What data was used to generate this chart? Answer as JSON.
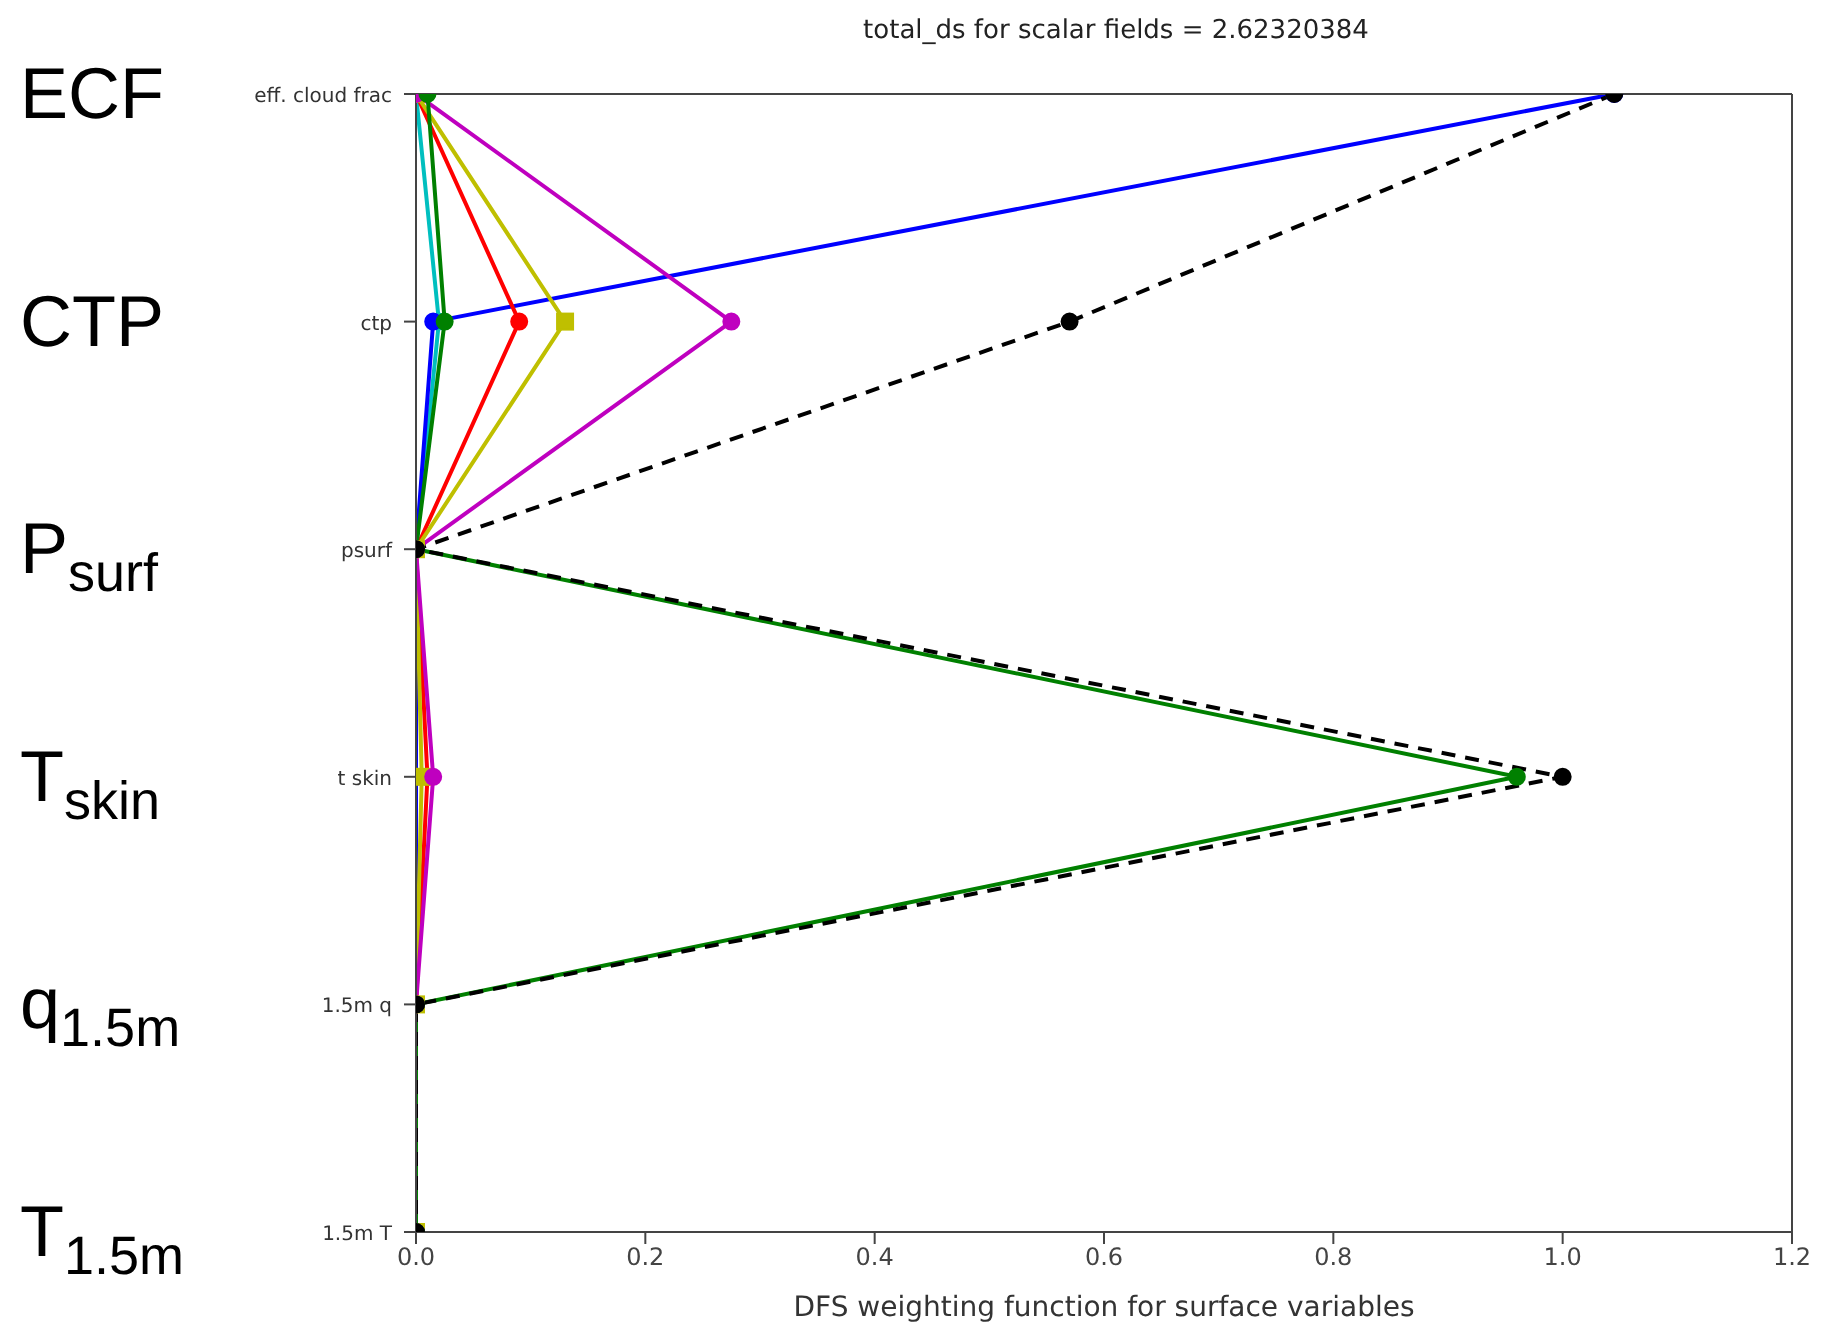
{
  "chart_data": {
    "type": "line",
    "orientation": "horizontal",
    "title": "total_ds for scalar fields = 2.62320384",
    "xlabel": "DFS weighting function for surface variables",
    "categories": [
      "eff. cloud frac",
      "ctp",
      "psurf",
      "t skin",
      "1.5m q",
      "1.5m T"
    ],
    "y2_categories": [
      "ECF",
      "CTP",
      "P$_{surf}$",
      "T$_{skin}$",
      "q$_{1.5m}$",
      "T$_{1.5m}$"
    ],
    "xlim": [
      0,
      1.2
    ],
    "xticks": [
      {
        "value": 0,
        "label": "0.0"
      },
      {
        "value": 0.2,
        "label": "0.2"
      },
      {
        "value": 0.4,
        "label": "0.4"
      },
      {
        "value": 0.6,
        "label": "0.6"
      },
      {
        "value": 0.8,
        "label": "0.8"
      },
      {
        "value": 1,
        "label": "1.0"
      },
      {
        "value": 1.2,
        "label": "1.2"
      }
    ],
    "marker": "circle",
    "grid": false,
    "legend": false,
    "series": [
      {
        "color": "#00bfbf",
        "values": [
          0,
          0.02,
          0,
          null,
          null,
          null
        ]
      },
      {
        "color": "#0000ff",
        "values": [
          1.045,
          0.015,
          0,
          0,
          0,
          0
        ]
      },
      {
        "color": "#ff0000",
        "values": [
          0,
          0.09,
          0,
          0.01,
          0,
          0
        ]
      },
      {
        "color": "#bfbf00",
        "marker": "square",
        "values": [
          0,
          0.13,
          0,
          0.005,
          0,
          0
        ]
      },
      {
        "color": "#bf00bf",
        "values": [
          0,
          0.275,
          0,
          0.015,
          0,
          0
        ]
      },
      {
        "color": "#008000",
        "values": [
          0.01,
          0.025,
          0,
          0.96,
          0,
          0
        ]
      },
      {
        "color": "#000000",
        "line_style": "dashed",
        "values": [
          1.045,
          0.57,
          0,
          1.0,
          0,
          0
        ]
      }
    ]
  }
}
